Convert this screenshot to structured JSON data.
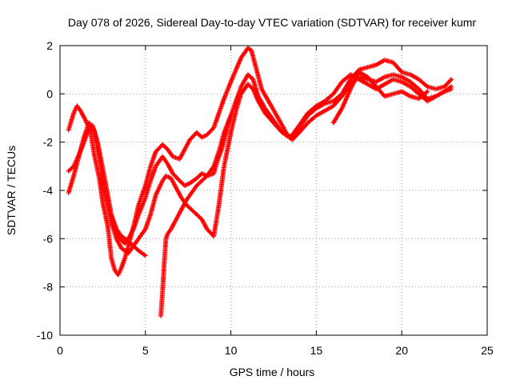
{
  "chart_data": {
    "type": "scatter",
    "title": "Day 078 of 2026, Sidereal Day-to-day VTEC variation (SDTVAR) for receiver kumr",
    "xlabel": "GPS time / hours",
    "ylabel": "SDTVAR / TECUs",
    "xlim": [
      0,
      25
    ],
    "ylim": [
      -10,
      2
    ],
    "xticks": [
      0,
      5,
      10,
      15,
      20,
      25
    ],
    "yticks": [
      -10,
      -8,
      -6,
      -4,
      -2,
      0,
      2
    ],
    "grid": true,
    "marker": "+",
    "color": "#ff0000",
    "series": [
      {
        "x": [
          0.5,
          0.8,
          1.0,
          1.2,
          1.5,
          1.8,
          2.0,
          2.3,
          2.5,
          2.8,
          3.0,
          3.2,
          3.4,
          3.6,
          3.8,
          4.0,
          4.3,
          4.6,
          5.0,
          5.3,
          5.6,
          6.0,
          6.3,
          6.6,
          7.0,
          7.3,
          7.6,
          8.0,
          8.3,
          8.6,
          9.0,
          9.3,
          9.6,
          10.0,
          10.3,
          10.6,
          11.0,
          11.2,
          11.5,
          11.8,
          12.2,
          12.6,
          13.0,
          13.3,
          13.6,
          14.0,
          14.5,
          15.0,
          15.5,
          16.0,
          16.5,
          17.0,
          17.5,
          18.0,
          18.5,
          19.0,
          19.5,
          20.0,
          20.5,
          21.0,
          21.5,
          22.0,
          22.5,
          22.9
        ],
        "y": [
          -1.5,
          -0.8,
          -0.5,
          -0.7,
          -1.1,
          -1.6,
          -2.5,
          -3.5,
          -4.5,
          -5.5,
          -6.8,
          -7.3,
          -7.5,
          -7.2,
          -6.8,
          -6.3,
          -5.5,
          -4.6,
          -3.8,
          -3.0,
          -2.4,
          -2.1,
          -2.3,
          -2.6,
          -2.7,
          -2.3,
          -1.9,
          -1.6,
          -1.8,
          -1.7,
          -1.4,
          -0.8,
          -0.2,
          0.5,
          1.0,
          1.5,
          1.9,
          1.8,
          1.0,
          0.2,
          -0.3,
          -0.8,
          -1.3,
          -1.7,
          -1.8,
          -1.4,
          -0.9,
          -0.6,
          -0.4,
          -0.3,
          0.0,
          0.6,
          1.0,
          1.1,
          1.2,
          1.4,
          1.3,
          0.9,
          0.8,
          0.6,
          0.3,
          0.2,
          0.3,
          0.6
        ]
      },
      {
        "x": [
          0.5,
          0.8,
          1.0,
          1.3,
          1.6,
          1.9,
          2.2,
          2.5,
          2.8,
          3.0,
          3.2,
          3.5,
          3.8,
          4.0,
          4.3,
          4.6,
          5.0,
          5.3,
          5.6,
          6.0,
          6.3,
          6.6,
          7.0,
          7.3,
          7.6,
          8.0,
          8.3,
          8.6,
          9.0,
          9.3,
          9.6,
          10.0,
          10.3,
          10.6,
          11.0,
          11.3,
          11.6,
          12.0,
          12.4,
          12.8,
          13.2,
          13.6,
          14.0,
          14.5,
          15.0,
          15.5,
          16.0,
          16.5,
          17.0,
          17.5,
          18.0,
          18.5,
          19.0,
          19.5,
          20.0,
          20.5,
          21.0,
          21.5,
          22.0,
          22.5,
          22.9
        ],
        "y": [
          -3.2,
          -3.0,
          -2.7,
          -2.2,
          -1.6,
          -1.3,
          -2.0,
          -3.1,
          -4.2,
          -5.0,
          -5.6,
          -6.0,
          -6.2,
          -6.0,
          -5.6,
          -5.0,
          -4.3,
          -3.6,
          -3.0,
          -2.6,
          -2.9,
          -3.3,
          -3.6,
          -3.8,
          -3.7,
          -3.5,
          -3.3,
          -3.4,
          -3.0,
          -2.4,
          -1.6,
          -0.9,
          -0.3,
          0.3,
          0.8,
          0.6,
          -0.1,
          -0.6,
          -1.0,
          -1.4,
          -1.7,
          -1.9,
          -1.6,
          -1.2,
          -0.9,
          -0.7,
          -0.5,
          -0.1,
          0.4,
          0.7,
          0.6,
          0.5,
          0.7,
          0.8,
          0.7,
          0.5,
          0.2,
          -0.2,
          -0.1,
          0.1,
          0.2
        ]
      },
      {
        "x": [
          0.5,
          0.8,
          1.1,
          1.4,
          1.7,
          2.0,
          2.3,
          2.6,
          3.0,
          3.3,
          3.6,
          4.0,
          4.3,
          4.6,
          5.0,
          5.3,
          5.6,
          5.8,
          6.0,
          6.2,
          6.5,
          6.8,
          7.1,
          7.4,
          7.7,
          8.0,
          8.3,
          8.6,
          9.0,
          9.3,
          9.6,
          10.0,
          10.3,
          10.6,
          11.0,
          11.3,
          11.6,
          12.0,
          12.5,
          13.0,
          13.5,
          14.0,
          14.5,
          15.0,
          15.5,
          16.0,
          16.5,
          17.0,
          17.5,
          18.0,
          18.5,
          19.0,
          19.5,
          20.0,
          20.5,
          21.0,
          21.5,
          22.0,
          22.5,
          22.9
        ],
        "y": [
          -4.1,
          -3.4,
          -2.6,
          -1.8,
          -1.2,
          -1.5,
          -2.6,
          -4.0,
          -5.3,
          -6.0,
          -6.4,
          -6.6,
          -6.3,
          -6.0,
          -5.6,
          -5.0,
          -4.2,
          -3.9,
          -3.6,
          -3.4,
          -3.5,
          -3.9,
          -4.3,
          -4.6,
          -4.8,
          -5.0,
          -5.2,
          -5.6,
          -5.9,
          -4.6,
          -3.0,
          -1.6,
          -0.7,
          0.0,
          0.4,
          0.2,
          -0.3,
          -0.8,
          -1.2,
          -1.6,
          -1.8,
          -1.3,
          -0.8,
          -0.5,
          -0.3,
          0.0,
          0.5,
          0.8,
          0.6,
          0.4,
          0.2,
          0.4,
          0.6,
          0.5,
          0.3,
          0.0,
          -0.3,
          -0.1,
          0.1,
          0.3
        ]
      },
      {
        "x": [
          3.0,
          3.3,
          3.6,
          4.0,
          4.3,
          4.6,
          5.0
        ],
        "y": [
          -5.0,
          -5.6,
          -5.9,
          -6.1,
          -6.3,
          -6.5,
          -6.7
        ]
      },
      {
        "x": [
          5.9,
          6.0,
          6.1,
          6.2,
          6.3,
          6.5,
          6.8,
          7.1,
          7.4,
          7.7,
          8.0,
          8.3,
          8.6,
          9.0,
          9.2,
          9.5,
          9.8,
          10.0
        ],
        "y": [
          -9.2,
          -8.2,
          -7.0,
          -6.0,
          -5.8,
          -5.6,
          -5.2,
          -4.8,
          -4.4,
          -4.1,
          -3.8,
          -3.6,
          -3.4,
          -3.3,
          -2.8,
          -2.2,
          -1.4,
          -0.9
        ]
      },
      {
        "x": [
          16.0,
          16.5,
          17.0,
          17.5,
          18.0,
          18.5,
          19.0,
          19.5,
          20.0,
          20.5,
          21.0,
          21.5
        ],
        "y": [
          -1.2,
          -0.6,
          0.2,
          0.9,
          0.7,
          0.3,
          -0.1,
          0.0,
          0.1,
          -0.1,
          -0.2,
          0.1
        ]
      }
    ]
  }
}
